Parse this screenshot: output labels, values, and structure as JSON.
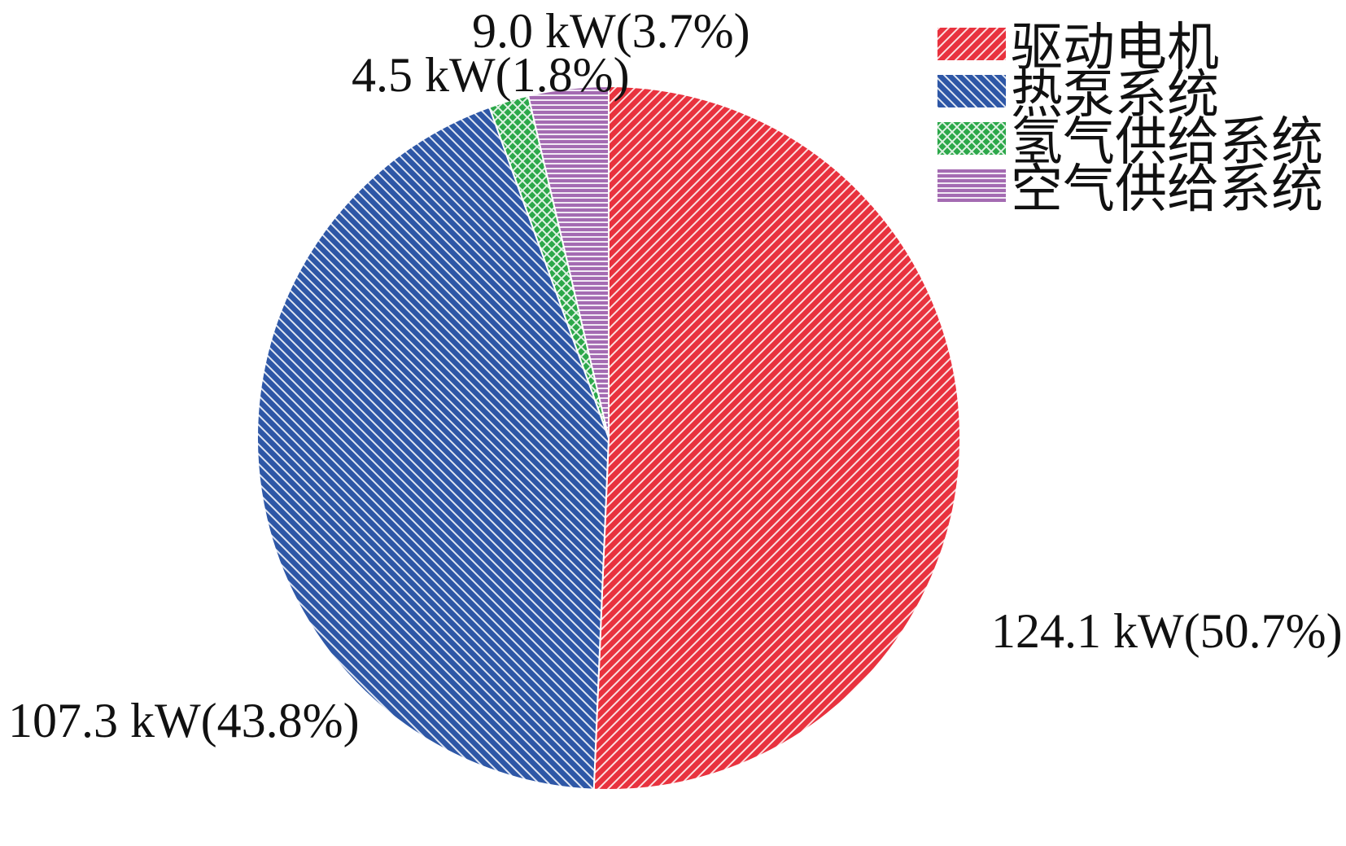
{
  "chart_data": {
    "type": "pie",
    "start": "12 o'clock",
    "direction": "clockwise",
    "legend": "top-right",
    "slices": [
      {
        "name": "驱动电机",
        "value": 124.1,
        "unit": "kW",
        "percent": 50.7,
        "label": "124.1 kW(50.7%)",
        "color": "#e8323e",
        "hatch": "forward-diagonal"
      },
      {
        "name": "热泵系统",
        "value": 107.3,
        "unit": "kW",
        "percent": 43.8,
        "label": "107.3 kW(43.8%)",
        "color": "#2e57a6",
        "hatch": "back-diagonal"
      },
      {
        "name": "氢气供给系统",
        "value": 4.5,
        "unit": "kW",
        "percent": 1.8,
        "label": "4.5 kW(1.8%)",
        "color": "#2ca84a",
        "hatch": "crosshatch"
      },
      {
        "name": "空气供给系统",
        "value": 9.0,
        "unit": "kW",
        "percent": 3.7,
        "label": "9.0 kW(3.7%)",
        "color": "#a46bb2",
        "hatch": "horizontal"
      }
    ]
  }
}
